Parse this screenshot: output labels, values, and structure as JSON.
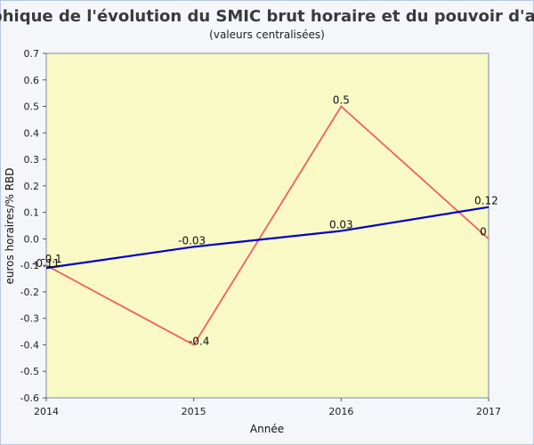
{
  "chart_data": {
    "type": "line",
    "title": "Graphique de l'évolution du SMIC brut horaire et du pouvoir d'achat",
    "subtitle": "(valeurs centralisées)",
    "xlabel": "Année",
    "ylabel": "euros horaires/% RBD",
    "x": [
      "2014",
      "2015",
      "2016",
      "2017"
    ],
    "xlim": [
      2014,
      2017
    ],
    "ylim": [
      -0.6,
      0.7
    ],
    "yticks": [
      "0.7",
      "0.6",
      "0.5",
      "0.4",
      "0.3",
      "0.2",
      "0.1",
      "0.0",
      "-0.1",
      "-0.2",
      "-0.3",
      "-0.4",
      "-0.5",
      "-0.6"
    ],
    "grid": false,
    "plot_background": "#f9f9c6",
    "series": [
      {
        "color": "#f06060",
        "values": [
          -0.1,
          -0.4,
          0.5,
          0
        ],
        "labels": [
          "-0.1",
          "-0.4",
          "0.5",
          "0"
        ]
      },
      {
        "color": "#0000cc",
        "values": [
          -0.11,
          -0.03,
          0.03,
          0.12
        ],
        "labels": [
          "-0.11",
          "-0.03",
          "0.03",
          "0.12"
        ]
      }
    ]
  }
}
